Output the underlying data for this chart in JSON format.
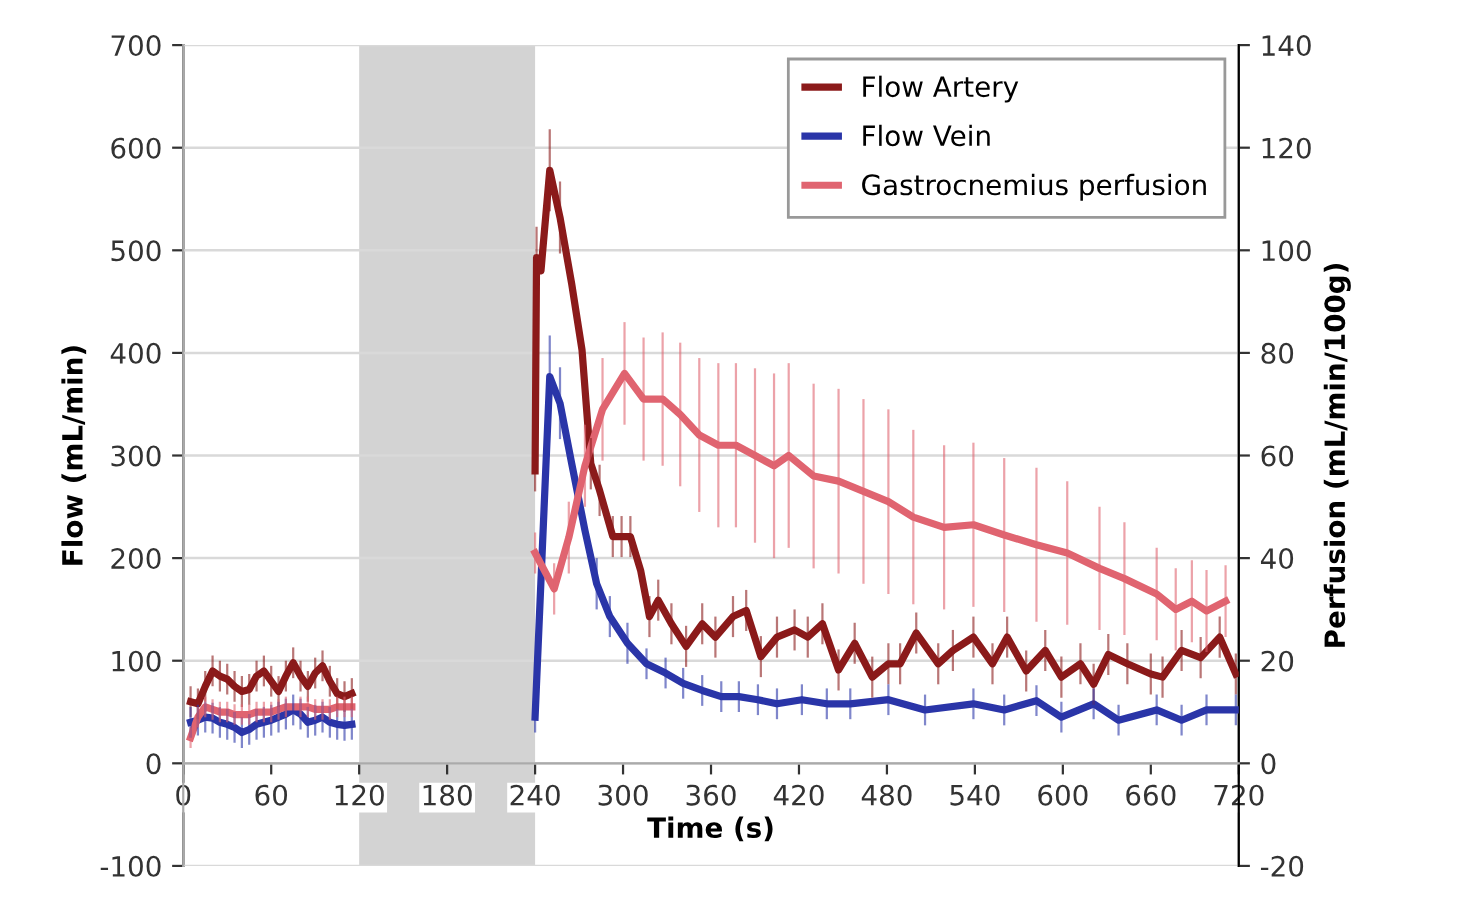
{
  "chart_data": {
    "type": "line",
    "xlabel": "Time (s)",
    "ylabel": "Flow (mL/min)",
    "y2label": "Perfusion (mL/min/100g)",
    "xlim": [
      0,
      720
    ],
    "xticks": [
      0,
      60,
      120,
      180,
      240,
      300,
      360,
      420,
      480,
      540,
      600,
      660,
      720
    ],
    "ylim": [
      -100,
      700
    ],
    "yticks": [
      -100,
      0,
      100,
      200,
      300,
      400,
      500,
      600,
      700
    ],
    "y2lim": [
      -20,
      140
    ],
    "y2ticks": [
      -20,
      0,
      20,
      40,
      60,
      80,
      100,
      120,
      140
    ],
    "grid": "y",
    "legend": "top right",
    "marker": "none",
    "line_style": "solid",
    "bands": [
      {
        "axis": "x",
        "from": 120,
        "to": 240,
        "label": null,
        "color": "#d3d3d3"
      }
    ],
    "series": [
      {
        "name": "Flow Artery",
        "color": "#8b1a1a",
        "x": [
          5,
          10,
          15,
          20,
          25,
          30,
          35,
          40,
          45,
          50,
          55,
          60,
          65,
          70,
          75,
          80,
          85,
          90,
          95,
          100,
          105,
          110,
          115,
          null,
          240,
          241,
          244,
          250,
          257,
          265,
          272,
          278,
          284,
          293,
          299,
          305,
          312,
          318,
          324,
          333,
          343,
          354,
          363,
          375,
          384,
          394,
          405,
          417,
          426,
          436,
          447,
          458,
          470,
          481,
          489,
          500,
          515,
          525,
          539,
          552,
          562,
          575,
          588,
          599,
          612,
          621,
          631,
          644,
          660,
          668,
          681,
          694,
          707,
          718
        ],
        "values": [
          60,
          58,
          75,
          90,
          85,
          82,
          75,
          70,
          72,
          85,
          90,
          80,
          70,
          85,
          98,
          85,
          75,
          88,
          95,
          80,
          68,
          65,
          68,
          null,
          285,
          493,
          480,
          578,
          532,
          467,
          403,
          292,
          266,
          221,
          221,
          221,
          188,
          143,
          159,
          136,
          114,
          136,
          123,
          143,
          149,
          104,
          123,
          130,
          123,
          136,
          91,
          117,
          84,
          97,
          97,
          127,
          97,
          110,
          123,
          97,
          123,
          90,
          110,
          84,
          97,
          77,
          106,
          97,
          87,
          84,
          110,
          103,
          123,
          87
        ],
        "errors": [
          15,
          15,
          15,
          15,
          15,
          15,
          15,
          15,
          15,
          15,
          15,
          15,
          15,
          15,
          15,
          15,
          15,
          15,
          15,
          15,
          15,
          15,
          15,
          null,
          20,
          30,
          null,
          40,
          35,
          null,
          null,
          25,
          25,
          20,
          20,
          20,
          null,
          20,
          20,
          20,
          20,
          20,
          20,
          20,
          20,
          20,
          20,
          20,
          20,
          20,
          20,
          20,
          20,
          20,
          20,
          20,
          20,
          20,
          20,
          20,
          20,
          20,
          20,
          20,
          20,
          20,
          20,
          20,
          20,
          20,
          20,
          20,
          20,
          20
        ]
      },
      {
        "name": "Flow Vein",
        "color": "#2a35a8",
        "x": [
          5,
          10,
          15,
          20,
          25,
          30,
          35,
          40,
          45,
          50,
          55,
          60,
          65,
          70,
          75,
          80,
          85,
          90,
          95,
          100,
          105,
          110,
          115,
          null,
          240,
          250,
          257,
          265,
          274,
          282,
          291,
          303,
          316,
          329,
          341,
          354,
          367,
          379,
          392,
          405,
          422,
          439,
          455,
          481,
          506,
          539,
          560,
          582,
          599,
          621,
          638,
          664,
          681,
          698,
          718
        ],
        "values": [
          40,
          42,
          45,
          44,
          40,
          38,
          35,
          30,
          33,
          38,
          40,
          42,
          45,
          48,
          52,
          48,
          40,
          42,
          45,
          40,
          38,
          37,
          38,
          null,
          45,
          377,
          351,
          292,
          227,
          175,
          143,
          117,
          97,
          88,
          78,
          71,
          65,
          65,
          62,
          58,
          62,
          58,
          58,
          62,
          52,
          58,
          52,
          61,
          45,
          58,
          42,
          52,
          42,
          52,
          52
        ],
        "errors": [
          15,
          15,
          15,
          15,
          15,
          15,
          15,
          15,
          15,
          15,
          15,
          15,
          15,
          15,
          15,
          15,
          15,
          15,
          15,
          15,
          15,
          15,
          15,
          null,
          15,
          40,
          35,
          null,
          null,
          25,
          20,
          20,
          15,
          15,
          15,
          15,
          15,
          15,
          15,
          15,
          15,
          15,
          15,
          15,
          15,
          15,
          15,
          15,
          15,
          15,
          15,
          15,
          15,
          15,
          15
        ]
      },
      {
        "name": "Gastrocnemius perfusion",
        "color": "#e06470",
        "axis": "y2",
        "x": [
          5,
          10,
          15,
          20,
          25,
          30,
          35,
          40,
          45,
          50,
          55,
          60,
          65,
          70,
          75,
          80,
          85,
          90,
          95,
          100,
          105,
          110,
          115,
          null,
          240,
          253,
          263,
          274,
          286,
          301,
          314,
          327,
          339,
          352,
          365,
          377,
          390,
          403,
          413,
          430,
          447,
          464,
          481,
          498,
          519,
          539,
          560,
          582,
          603,
          625,
          642,
          664,
          677,
          688,
          698,
          711
        ],
        "values": [
          5,
          9,
          11,
          10.5,
          10,
          10,
          9.5,
          9.5,
          9.5,
          10,
          10,
          10,
          10.5,
          11,
          11,
          11,
          11,
          10.5,
          10.5,
          10.5,
          11,
          11,
          11,
          null,
          41,
          34,
          44,
          58,
          69,
          76,
          71,
          71,
          68,
          64,
          62,
          62,
          60,
          58,
          60,
          56,
          55,
          53,
          51,
          48,
          46,
          46.5,
          44.5,
          42.6,
          41,
          38,
          36,
          33,
          30,
          31.6,
          29.7,
          31.6
        ],
        "errors": [
          2,
          2,
          2,
          2,
          2,
          2,
          2,
          2,
          2,
          2,
          2,
          2,
          2,
          2,
          null,
          2,
          2,
          2,
          2,
          2,
          2,
          2,
          2,
          null,
          4,
          5,
          7,
          8,
          10,
          10,
          12,
          13,
          14,
          15,
          16,
          16,
          17,
          18,
          18,
          18,
          18,
          18,
          18,
          17,
          16,
          16,
          15,
          15,
          14,
          12,
          11,
          9,
          8,
          8,
          8,
          7
        ]
      }
    ]
  }
}
